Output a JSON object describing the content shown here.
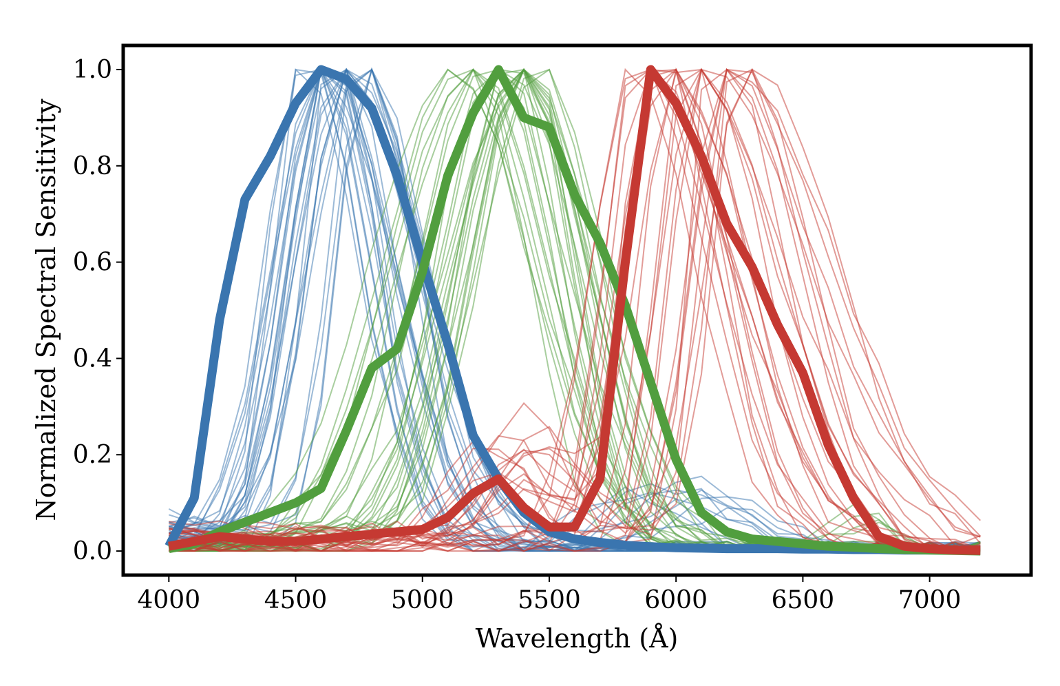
{
  "chart_data": {
    "type": "line",
    "title": "",
    "xlabel": "Wavelength (Å)",
    "ylabel": "Normalized Spectral Sensitivity",
    "xlim": [
      3820,
      7400
    ],
    "ylim": [
      -0.05,
      1.05
    ],
    "grid": false,
    "legend": "none",
    "xticks": [
      4000,
      4500,
      5000,
      5500,
      6000,
      6500,
      7000
    ],
    "xtick_labels": [
      "4000",
      "4500",
      "5000",
      "5500",
      "6000",
      "6500",
      "7000"
    ],
    "yticks": [
      0.0,
      0.2,
      0.4,
      0.6,
      0.8,
      1.0
    ],
    "ytick_labels": [
      "0.0",
      "0.2",
      "0.4",
      "0.6",
      "0.8",
      "1.0"
    ],
    "x": [
      4000,
      4100,
      4200,
      4300,
      4400,
      4500,
      4600,
      4700,
      4800,
      4900,
      5000,
      5100,
      5200,
      5300,
      5400,
      5500,
      5600,
      5700,
      5800,
      5900,
      6000,
      6100,
      6200,
      6300,
      6400,
      6500,
      6600,
      6700,
      6800,
      6900,
      7000,
      7100,
      7200
    ],
    "colors": {
      "blue": "#3a75af",
      "green": "#519e3e",
      "red": "#c53932"
    },
    "mean_curves": [
      {
        "color": "blue",
        "values": [
          0.01,
          0.11,
          0.48,
          0.73,
          0.82,
          0.93,
          1.0,
          0.98,
          0.92,
          0.78,
          0.6,
          0.43,
          0.24,
          0.15,
          0.08,
          0.04,
          0.025,
          0.018,
          0.012,
          0.009,
          0.007,
          0.006,
          0.005,
          0.005,
          0.005,
          0.004,
          0.004,
          0.003,
          0.003,
          0.002,
          0.002,
          0.002,
          0.001
        ]
      },
      {
        "color": "green",
        "values": [
          0.005,
          0.015,
          0.04,
          0.06,
          0.08,
          0.1,
          0.13,
          0.25,
          0.38,
          0.42,
          0.58,
          0.78,
          0.91,
          1.0,
          0.9,
          0.88,
          0.74,
          0.64,
          0.51,
          0.35,
          0.19,
          0.08,
          0.04,
          0.025,
          0.02,
          0.015,
          0.01,
          0.008,
          0.005,
          0.003,
          0.002,
          0.001,
          0.0
        ]
      },
      {
        "color": "red",
        "values": [
          0.01,
          0.02,
          0.03,
          0.025,
          0.02,
          0.02,
          0.025,
          0.03,
          0.035,
          0.04,
          0.045,
          0.07,
          0.12,
          0.15,
          0.09,
          0.05,
          0.05,
          0.15,
          0.6,
          1.0,
          0.93,
          0.82,
          0.68,
          0.59,
          0.47,
          0.37,
          0.22,
          0.11,
          0.03,
          0.01,
          0.005,
          0.002,
          0.001
        ]
      }
    ],
    "individual_curves": {
      "count_per_color": 26,
      "blue_peak_range": [
        4500,
        4800
      ],
      "green_peak_range": [
        5100,
        5500
      ],
      "red_peak_range": [
        5800,
        6300
      ]
    }
  }
}
